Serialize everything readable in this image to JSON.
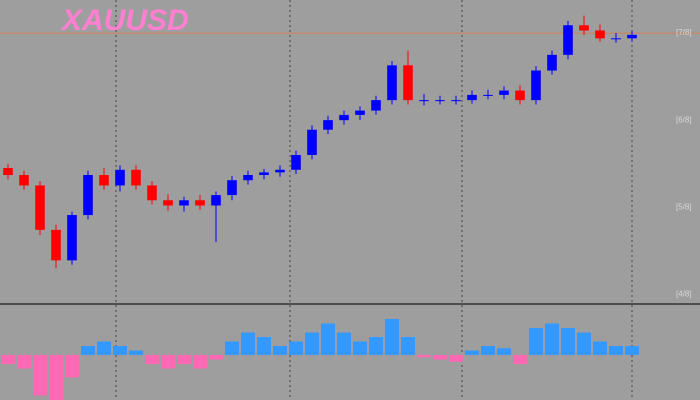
{
  "chart_data": [
    {
      "type": "candlestick",
      "title": "XAUUSD",
      "ylim": [
        3.9,
        7.38
      ],
      "yticks": [
        {
          "value": 7,
          "label": "[7/8]"
        },
        {
          "value": 6,
          "label": "[6/8]"
        },
        {
          "value": 5,
          "label": "[5/8]"
        },
        {
          "value": 4,
          "label": "[4/8]"
        }
      ],
      "up_color": "#0000ff",
      "down_color": "#ff0000",
      "open": [
        5.45,
        5.37,
        5.25,
        4.74,
        4.39,
        4.91,
        5.37,
        5.25,
        5.43,
        5.25,
        5.08,
        5.02,
        5.08,
        5.02,
        5.14,
        5.31,
        5.37,
        5.4,
        5.43,
        5.6,
        5.89,
        6.0,
        6.06,
        6.11,
        6.23,
        6.63,
        6.23,
        6.23,
        6.23,
        6.23,
        6.29,
        6.29,
        6.34,
        6.23,
        6.57,
        6.75,
        7.09,
        7.03,
        6.94,
        6.94
      ],
      "high": [
        5.5,
        5.42,
        5.3,
        4.8,
        4.95,
        5.42,
        5.45,
        5.48,
        5.48,
        5.3,
        5.15,
        5.12,
        5.14,
        5.18,
        5.36,
        5.42,
        5.44,
        5.48,
        5.65,
        5.94,
        6.05,
        6.11,
        6.16,
        6.28,
        6.68,
        6.8,
        6.3,
        6.28,
        6.28,
        6.34,
        6.35,
        6.39,
        6.4,
        6.62,
        6.8,
        7.14,
        7.2,
        7.1,
        7.0,
        7.02
      ],
      "low": [
        5.32,
        5.2,
        4.68,
        4.3,
        4.34,
        4.86,
        5.2,
        5.18,
        5.2,
        5.03,
        4.96,
        4.95,
        4.97,
        4.6,
        5.08,
        5.26,
        5.32,
        5.35,
        5.38,
        5.55,
        5.84,
        5.95,
        6.0,
        6.06,
        6.18,
        6.18,
        6.17,
        6.18,
        6.18,
        6.19,
        6.24,
        6.24,
        6.18,
        6.18,
        6.52,
        6.7,
        6.98,
        6.9,
        6.89,
        6.9
      ],
      "close": [
        5.37,
        5.25,
        4.74,
        4.39,
        4.91,
        5.37,
        5.25,
        5.43,
        5.25,
        5.08,
        5.02,
        5.08,
        5.02,
        5.14,
        5.31,
        5.37,
        5.4,
        5.43,
        5.6,
        5.89,
        6.0,
        6.06,
        6.11,
        6.23,
        6.63,
        6.23,
        6.23,
        6.23,
        6.23,
        6.29,
        6.29,
        6.34,
        6.23,
        6.57,
        6.75,
        7.09,
        7.03,
        6.94,
        6.94,
        6.98
      ]
    },
    {
      "type": "bar",
      "ylim": [
        -1,
        1
      ],
      "pos_color": "#3399ff",
      "neg_color": "#ff69b4",
      "values": [
        -0.2,
        -0.3,
        -0.9,
        -1.0,
        -0.5,
        0.2,
        0.3,
        0.2,
        0.1,
        -0.2,
        -0.3,
        -0.2,
        -0.3,
        -0.1,
        0.3,
        0.5,
        0.4,
        0.2,
        0.3,
        0.5,
        0.7,
        0.5,
        0.3,
        0.4,
        0.8,
        0.4,
        -0.05,
        -0.1,
        -0.15,
        0.1,
        0.2,
        0.15,
        -0.2,
        0.6,
        0.7,
        0.6,
        0.5,
        0.3,
        0.2,
        0.2
      ]
    }
  ]
}
